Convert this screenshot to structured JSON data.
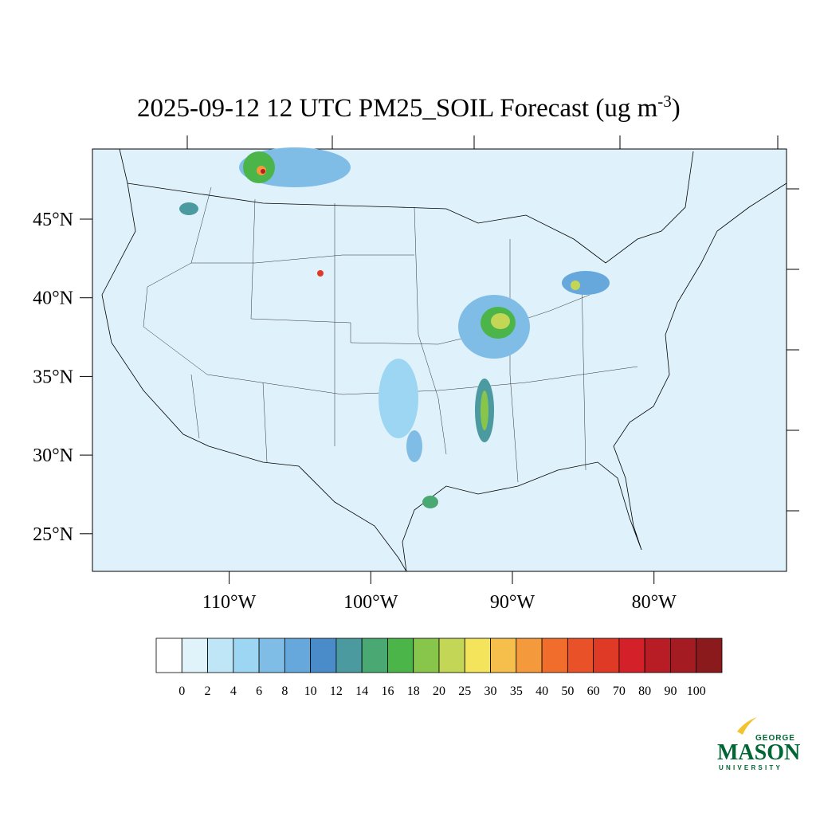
{
  "map": {
    "title": {
      "text": "2025-09-12 12 UTC PM25_SOIL Forecast (ug m",
      "superscript": "-3",
      "close": ")"
    },
    "lat_ticks": [
      {
        "value": 45,
        "label": "45°N"
      },
      {
        "value": 40,
        "label": "40°N"
      },
      {
        "value": 35,
        "label": "35°N"
      },
      {
        "value": 30,
        "label": "30°N"
      },
      {
        "value": 25,
        "label": "25°N"
      }
    ],
    "lon_ticks": [
      {
        "value": -110,
        "label": "110°W"
      },
      {
        "value": -100,
        "label": "100°W"
      },
      {
        "value": -90,
        "label": "90°W"
      },
      {
        "value": -80,
        "label": "80°W"
      }
    ],
    "colorbar": {
      "levels": [
        0,
        2,
        4,
        6,
        8,
        10,
        12,
        14,
        16,
        18,
        20,
        25,
        30,
        35,
        40,
        50,
        60,
        70,
        80,
        90,
        100
      ],
      "colors": [
        "#ffffff",
        "#e0f3fb",
        "#bfe6f7",
        "#9dd6f3",
        "#7fbde6",
        "#67a8dc",
        "#4a8cca",
        "#4a9a9f",
        "#4aa872",
        "#4cb54a",
        "#88c54b",
        "#c4d656",
        "#f4e45b",
        "#f6be4a",
        "#f59a3c",
        "#f06d2c",
        "#e95129",
        "#de3a26",
        "#d42029",
        "#b81d25",
        "#a51b22",
        "#8b1a1d"
      ]
    },
    "logo": {
      "top": "GEORGE",
      "main": "MASON",
      "bottom": "UNIVERSITY"
    }
  }
}
